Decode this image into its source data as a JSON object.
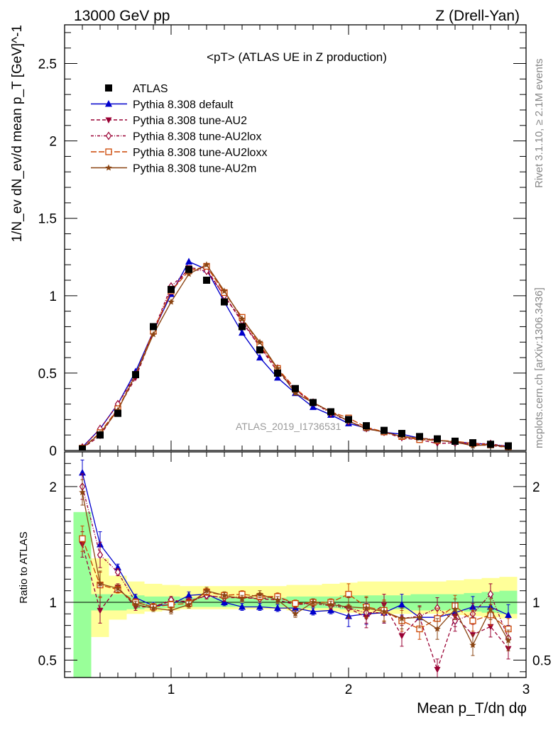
{
  "header": {
    "left": "13000 GeV pp",
    "right": "Z (Drell-Yan)"
  },
  "side_labels": {
    "rivet": "Rivet 3.1.10, ≥ 2.1M events",
    "mcplots": "mcplots.cern.ch [arXiv:1306.3436]"
  },
  "chart_data": {
    "type": "line",
    "title": "<pT> (ATLAS UE in Z production)",
    "analysis_label": "ATLAS_2019_I1736531",
    "xlabel": "Mean p_T/dη dφ",
    "ylabel": "1/N_ev dN_ev/d mean p_T [GeV]^-1",
    "ratio_ylabel": "Ratio to ATLAS",
    "xlim": [
      0.4,
      3.0
    ],
    "ylim": [
      0,
      2.75
    ],
    "ratio_ylim": [
      0.35,
      2.3
    ],
    "x_ticks": [
      "1",
      "2",
      "3"
    ],
    "y_ticks": [
      "0",
      "0.5",
      "1",
      "1.5",
      "2",
      "2.5"
    ],
    "ratio_y_ticks": [
      "0.5",
      "1",
      "2"
    ],
    "x": [
      0.5,
      0.6,
      0.7,
      0.8,
      0.9,
      1.0,
      1.1,
      1.2,
      1.3,
      1.4,
      1.5,
      1.6,
      1.7,
      1.8,
      1.9,
      2.0,
      2.1,
      2.2,
      2.3,
      2.4,
      2.5,
      2.6,
      2.7,
      2.8,
      2.9
    ],
    "data": {
      "name": "ATLAS",
      "values": [
        0.01,
        0.1,
        0.24,
        0.49,
        0.8,
        1.04,
        1.17,
        1.1,
        0.96,
        0.8,
        0.65,
        0.5,
        0.4,
        0.31,
        0.25,
        0.2,
        0.16,
        0.13,
        0.11,
        0.09,
        0.075,
        0.06,
        0.05,
        0.04,
        0.03
      ]
    },
    "series": [
      {
        "name": "Pythia 8.308 default",
        "color": "#0000cc",
        "dash": "solid",
        "marker": "triangle-up",
        "values": [
          0.021,
          0.14,
          0.3,
          0.51,
          0.77,
          1.01,
          1.22,
          1.17,
          0.96,
          0.76,
          0.6,
          0.47,
          0.37,
          0.28,
          0.23,
          0.175,
          0.145,
          0.118,
          0.105,
          0.08,
          0.065,
          0.055,
          0.047,
          0.038,
          0.028
        ],
        "ratio": [
          2.12,
          1.5,
          1.3,
          1.04,
          0.97,
          0.98,
          1.06,
          1.07,
          1.0,
          0.96,
          0.96,
          0.95,
          0.95,
          0.92,
          0.93,
          0.88,
          0.9,
          0.91,
          0.98,
          0.87,
          0.87,
          0.91,
          0.96,
          0.96,
          0.89
        ]
      },
      {
        "name": "Pythia 8.308 tune-AU2",
        "color": "#990033",
        "dash": "dashed",
        "marker": "triangle-down",
        "values": [
          0.015,
          0.095,
          0.27,
          0.47,
          0.76,
          1.03,
          1.18,
          1.17,
          1.0,
          0.83,
          0.67,
          0.51,
          0.39,
          0.31,
          0.25,
          0.19,
          0.14,
          0.12,
          0.08,
          0.07,
          0.045,
          0.05,
          0.038,
          0.032,
          0.02
        ],
        "ratio": [
          1.5,
          0.93,
          1.13,
          0.96,
          0.96,
          1.01,
          1.01,
          1.06,
          1.04,
          1.04,
          1.03,
          1.02,
          0.98,
          1.0,
          1.0,
          0.95,
          0.87,
          0.98,
          0.71,
          0.87,
          0.42,
          0.88,
          0.72,
          0.79,
          0.6
        ]
      },
      {
        "name": "Pythia 8.308 tune-AU2lox",
        "color": "#990033",
        "dash": "dashdot",
        "marker": "diamond-open",
        "values": [
          0.02,
          0.14,
          0.3,
          0.49,
          0.77,
          1.06,
          1.17,
          1.16,
          1.0,
          0.84,
          0.67,
          0.53,
          0.39,
          0.31,
          0.24,
          0.19,
          0.145,
          0.12,
          0.09,
          0.08,
          0.07,
          0.05,
          0.045,
          0.043,
          0.025
        ],
        "ratio": [
          2.0,
          1.41,
          1.26,
          1.0,
          0.96,
          1.02,
          1.0,
          1.06,
          1.04,
          1.05,
          1.03,
          1.05,
          0.98,
          0.99,
          0.97,
          0.95,
          0.91,
          0.91,
          0.86,
          0.88,
          0.95,
          0.84,
          0.9,
          1.07,
          0.69
        ]
      },
      {
        "name": "Pythia 8.308 tune-AU2loxx",
        "color": "#cc4400",
        "dash": "longdash",
        "marker": "square-open",
        "values": [
          0.015,
          0.115,
          0.27,
          0.49,
          0.77,
          1.03,
          1.16,
          1.19,
          1.02,
          0.86,
          0.68,
          0.53,
          0.4,
          0.31,
          0.25,
          0.21,
          0.15,
          0.12,
          0.09,
          0.07,
          0.065,
          0.06,
          0.045,
          0.036,
          0.024
        ],
        "ratio": [
          1.55,
          1.15,
          1.11,
          1.0,
          0.96,
          0.98,
          0.99,
          1.09,
          1.06,
          1.07,
          1.05,
          1.05,
          0.99,
          1.0,
          1.0,
          1.07,
          0.96,
          0.93,
          0.84,
          0.77,
          0.86,
          0.97,
          0.84,
          0.89,
          0.77
        ]
      },
      {
        "name": "Pythia 8.308 tune-AU2m",
        "color": "#8b4513",
        "dash": "solid",
        "marker": "star",
        "values": [
          0.015,
          0.11,
          0.26,
          0.49,
          0.75,
          0.96,
          1.14,
          1.2,
          1.03,
          0.85,
          0.7,
          0.53,
          0.37,
          0.31,
          0.25,
          0.19,
          0.14,
          0.12,
          0.09,
          0.08,
          0.065,
          0.055,
          0.03,
          0.038,
          0.02
        ],
        "ratio": [
          1.95,
          1.16,
          1.12,
          0.98,
          0.95,
          0.93,
          0.98,
          1.1,
          1.06,
          1.03,
          1.07,
          1.02,
          0.9,
          1.0,
          0.98,
          0.96,
          0.95,
          0.92,
          0.86,
          0.87,
          0.77,
          0.94,
          0.63,
          0.94,
          0.67
        ]
      }
    ],
    "legend_position": "top-left",
    "grid": false
  },
  "colors": {
    "data": "#000000",
    "band_inner": "#99ff99",
    "band_outer": "#ffff99"
  }
}
